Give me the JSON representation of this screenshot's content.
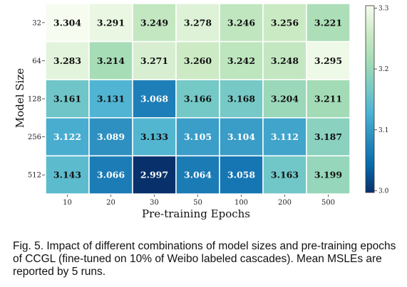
{
  "chart_data": {
    "type": "heatmap",
    "xlabel": "Pre-training Epochs",
    "ylabel": "Model Size",
    "x_categories": [
      "10",
      "20",
      "30",
      "50",
      "100",
      "200",
      "500"
    ],
    "y_categories": [
      "32",
      "64",
      "128",
      "256",
      "512"
    ],
    "values": [
      [
        3.304,
        3.291,
        3.249,
        3.278,
        3.246,
        3.256,
        3.221
      ],
      [
        3.283,
        3.214,
        3.271,
        3.26,
        3.242,
        3.248,
        3.295
      ],
      [
        3.161,
        3.131,
        3.068,
        3.166,
        3.168,
        3.204,
        3.211
      ],
      [
        3.122,
        3.089,
        3.133,
        3.105,
        3.104,
        3.112,
        3.187
      ],
      [
        3.143,
        3.066,
        2.997,
        3.064,
        3.058,
        3.163,
        3.199
      ]
    ],
    "value_labels": [
      [
        "3.304",
        "3.291",
        "3.249",
        "3.278",
        "3.246",
        "3.256",
        "3.221"
      ],
      [
        "3.283",
        "3.214",
        "3.271",
        "3.260",
        "3.242",
        "3.248",
        "3.295"
      ],
      [
        "3.161",
        "3.131",
        "3.068",
        "3.166",
        "3.168",
        "3.204",
        "3.211"
      ],
      [
        "3.122",
        "3.089",
        "3.133",
        "3.105",
        "3.104",
        "3.112",
        "3.187"
      ],
      [
        "3.143",
        "3.066",
        "2.997",
        "3.064",
        "3.058",
        "3.163",
        "3.199"
      ]
    ],
    "colorbar": {
      "min": 2.997,
      "max": 3.304,
      "ticks": [
        3.0,
        3.1,
        3.2,
        3.3
      ],
      "tick_labels": [
        "3.0",
        "3.1",
        "3.2",
        "3.3"
      ],
      "colormap": "GnBu_r",
      "colors": [
        "#08306b",
        "#0868ac",
        "#2b8cbe",
        "#4eb3d3",
        "#7bccc4",
        "#a8ddb5",
        "#ccebc5",
        "#f7fcf0"
      ]
    },
    "grid": true
  },
  "caption": "Fig. 5. Impact of different combinations of model sizes and pre-training epochs of CCGL (fine-tuned on 10% of Weibo labeled cascades). Mean MSLEs are reported by 5 runs."
}
